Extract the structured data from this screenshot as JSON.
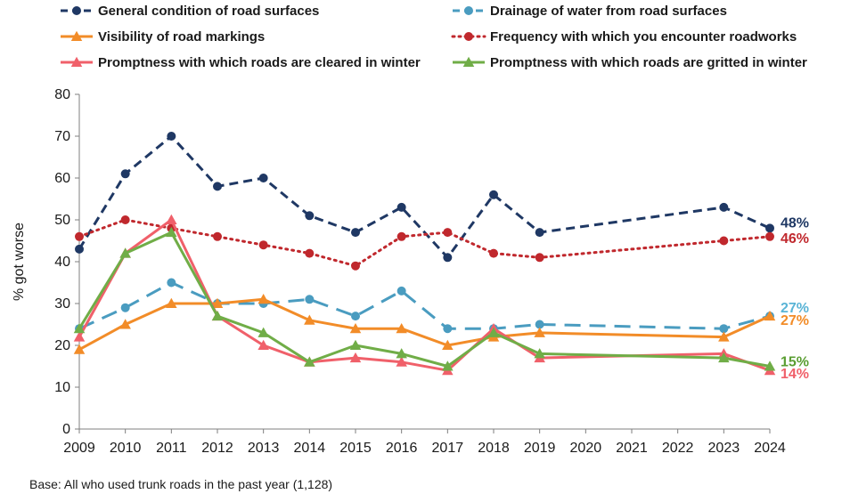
{
  "chart_data": {
    "type": "line",
    "title": "",
    "xlabel": "",
    "ylabel": "% got worse",
    "ylim": [
      0,
      80
    ],
    "yticks": [
      0,
      10,
      20,
      30,
      40,
      50,
      60,
      70,
      80
    ],
    "categories": [
      "2009",
      "2010",
      "2011",
      "2012",
      "2013",
      "2014",
      "2015",
      "2016",
      "2017",
      "2018",
      "2019",
      "2020",
      "2021",
      "2022",
      "2023",
      "2024"
    ],
    "legend_position": "top",
    "series": [
      {
        "key": "general",
        "name": "General condition of road surfaces",
        "color": "#1f3864",
        "dash": "dashed",
        "marker": "circle",
        "values": [
          43,
          61,
          70,
          58,
          60,
          51,
          47,
          53,
          41,
          56,
          47,
          null,
          null,
          null,
          53,
          48
        ],
        "end_label": "48%"
      },
      {
        "key": "drainage",
        "name": "Drainage of water from road surfaces",
        "color": "#4a9cc0",
        "dash": "longdash",
        "marker": "circle",
        "values": [
          24,
          29,
          35,
          30,
          30,
          31,
          27,
          33,
          24,
          24,
          25,
          null,
          null,
          null,
          24,
          27
        ],
        "end_label": "27%"
      },
      {
        "key": "markings",
        "name": "Visibility of road markings",
        "color": "#f28c28",
        "dash": "solid",
        "marker": "triangle",
        "values": [
          19,
          25,
          30,
          30,
          31,
          26,
          24,
          24,
          20,
          22,
          23,
          null,
          null,
          null,
          22,
          27
        ],
        "end_label": "27%"
      },
      {
        "key": "roadworks",
        "name": "Frequency with which you encounter roadworks",
        "color": "#c0282d",
        "dash": "dotted",
        "marker": "circle",
        "values": [
          46,
          50,
          48,
          46,
          44,
          42,
          39,
          46,
          47,
          42,
          41,
          null,
          null,
          null,
          45,
          46
        ],
        "end_label": "46%"
      },
      {
        "key": "cleared",
        "name": "Promptness with which roads are cleared in winter",
        "color": "#f0606a",
        "dash": "solid",
        "marker": "triangle",
        "values": [
          22,
          42,
          50,
          27,
          20,
          16,
          17,
          16,
          14,
          24,
          17,
          null,
          null,
          null,
          18,
          14
        ],
        "end_label": "14%"
      },
      {
        "key": "gritted",
        "name": "Promptness with which roads are gritted in winter",
        "color": "#70ad47",
        "dash": "solid",
        "marker": "triangle",
        "values": [
          24,
          42,
          47,
          27,
          23,
          16,
          20,
          18,
          15,
          23,
          18,
          null,
          null,
          null,
          17,
          15
        ],
        "end_label": "15%"
      }
    ],
    "end_label_colors": {
      "general": "#1f3864",
      "drainage": "#5ab4d6",
      "markings": "#f28c28",
      "roadworks": "#c0282d",
      "cleared": "#f0606a",
      "gritted": "#5a9e32"
    }
  },
  "footnote": "Base: All who used trunk roads in the past year (1,128)"
}
